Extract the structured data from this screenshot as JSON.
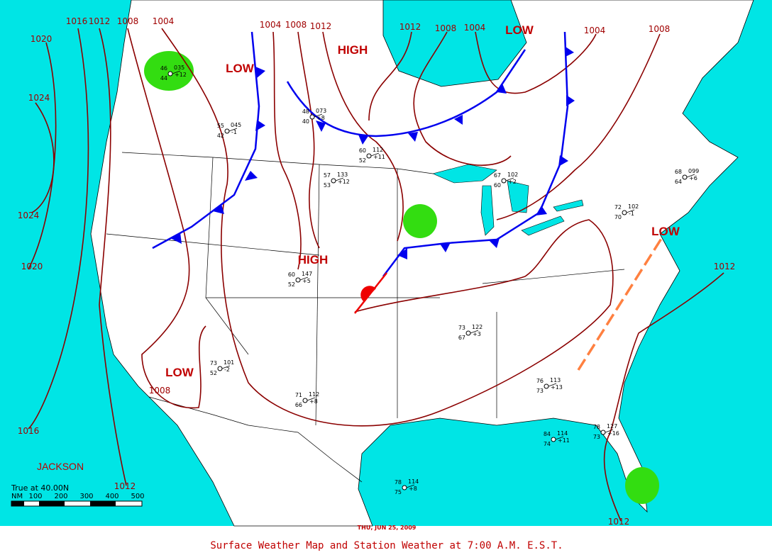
{
  "title": "Surface Weather Map and Station Weather at 7:00 A.M. E.S.T.",
  "date": "THU, JUN 25, 2009",
  "office": "JACKSON",
  "scale": {
    "note": "True at 40.00N",
    "unit": "NM",
    "ticks": [
      "100",
      "200",
      "300",
      "400",
      "500"
    ]
  },
  "pressure_centers": [
    "LOW",
    "HIGH",
    "LOW",
    "LOW",
    "HIGH",
    "LOW"
  ],
  "isobar_labels": [
    "1016",
    "1012",
    "1008",
    "1004",
    "1020",
    "1024",
    "1024",
    "1020",
    "1016",
    "1012",
    "1008",
    "1004",
    "1008",
    "1012",
    "1012",
    "1008",
    "1004",
    "1004",
    "1008",
    "1012",
    "1012"
  ],
  "stations": [
    {
      "temp": "46",
      "dewpoint": "44",
      "pressure": "035",
      "change": "+12"
    },
    {
      "temp": "55",
      "dewpoint": "42",
      "pressure": "045",
      "change": "-1"
    },
    {
      "temp": "48",
      "dewpoint": "40",
      "pressure": "073",
      "change": "+8"
    },
    {
      "temp": "60",
      "dewpoint": "52",
      "pressure": "112",
      "change": "+11"
    },
    {
      "temp": "57",
      "dewpoint": "53",
      "pressure": "133",
      "change": "+12"
    },
    {
      "temp": "67",
      "dewpoint": "60",
      "pressure": "102",
      "change": "+2"
    },
    {
      "temp": "72",
      "dewpoint": "70",
      "pressure": "102",
      "change": "-1"
    },
    {
      "temp": "60",
      "dewpoint": "52",
      "pressure": "147",
      "change": "+5"
    },
    {
      "temp": "73",
      "dewpoint": "52",
      "pressure": "101",
      "change": "-2"
    },
    {
      "temp": "71",
      "dewpoint": "66",
      "pressure": "112",
      "change": "+8"
    },
    {
      "temp": "73",
      "dewpoint": "67",
      "pressure": "122",
      "change": "+3"
    },
    {
      "temp": "76",
      "dewpoint": "73",
      "pressure": "113",
      "change": "+13"
    },
    {
      "temp": "84",
      "dewpoint": "74",
      "pressure": "114",
      "change": "+11"
    },
    {
      "temp": "78",
      "dewpoint": "75",
      "pressure": "114",
      "change": "+8"
    },
    {
      "temp": "78",
      "dewpoint": "73",
      "pressure": "127",
      "change": "+16"
    },
    {
      "temp": "68",
      "dewpoint": "64",
      "pressure": "099",
      "change": "+6"
    }
  ]
}
